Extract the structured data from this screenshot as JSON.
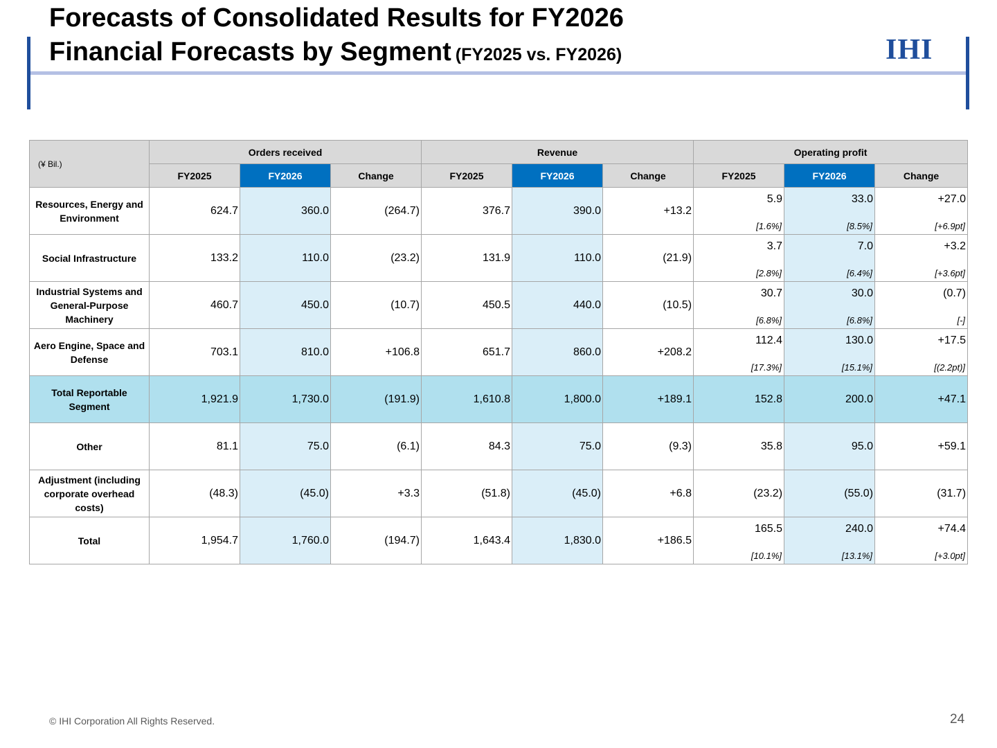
{
  "header": {
    "title_line1": "Forecasts of Consolidated Results for FY2026",
    "title_line2": "Financial Forecasts by Segment",
    "subtitle": "(FY2025 vs. FY2026)",
    "logo_text": "IHI"
  },
  "colors": {
    "accent": "#1f4e9c",
    "header_blue": "#0070c0",
    "highlight": "#daeef8",
    "total_row": "#b0e0ee"
  },
  "table": {
    "unit": "(¥ Bil.)",
    "groups": [
      "Orders received",
      "Revenue",
      "Operating profit"
    ],
    "subheaders": [
      "FY2025",
      "FY2026",
      "Change",
      "FY2025",
      "FY2026",
      "Change",
      "FY2025",
      "FY2026",
      "Change"
    ],
    "rows": [
      {
        "label": "Resources, Energy and Environment",
        "orders": [
          "624.7",
          "360.0",
          "(264.7)"
        ],
        "revenue": [
          "376.7",
          "390.0",
          "+13.2"
        ],
        "op": [
          "5.9",
          "33.0",
          "+27.0"
        ],
        "op_pct": [
          "[1.6%]",
          "[8.5%]",
          "[+6.9pt]"
        ]
      },
      {
        "label": "Social Infrastructure",
        "orders": [
          "133.2",
          "110.0",
          "(23.2)"
        ],
        "revenue": [
          "131.9",
          "110.0",
          "(21.9)"
        ],
        "op": [
          "3.7",
          "7.0",
          "+3.2"
        ],
        "op_pct": [
          "[2.8%]",
          "[6.4%]",
          "[+3.6pt]"
        ]
      },
      {
        "label": "Industrial Systems and General-Purpose Machinery",
        "orders": [
          "460.7",
          "450.0",
          "(10.7)"
        ],
        "revenue": [
          "450.5",
          "440.0",
          "(10.5)"
        ],
        "op": [
          "30.7",
          "30.0",
          "(0.7)"
        ],
        "op_pct": [
          "[6.8%]",
          "[6.8%]",
          "[-]"
        ]
      },
      {
        "label": "Aero Engine, Space and Defense",
        "orders": [
          "703.1",
          "810.0",
          "+106.8"
        ],
        "revenue": [
          "651.7",
          "860.0",
          "+208.2"
        ],
        "op": [
          "112.4",
          "130.0",
          "+17.5"
        ],
        "op_pct": [
          "[17.3%]",
          "[15.1%]",
          "[(2.2pt)]"
        ]
      },
      {
        "label": "Total Reportable Segment",
        "orders": [
          "1,921.9",
          "1,730.0",
          "(191.9)"
        ],
        "revenue": [
          "1,610.8",
          "1,800.0",
          "+189.1"
        ],
        "op": [
          "152.8",
          "200.0",
          "+47.1"
        ],
        "op_pct": []
      },
      {
        "label": "Other",
        "orders": [
          "81.1",
          "75.0",
          "(6.1)"
        ],
        "revenue": [
          "84.3",
          "75.0",
          "(9.3)"
        ],
        "op": [
          "35.8",
          "95.0",
          "+59.1"
        ],
        "op_pct": []
      },
      {
        "label": "Adjustment (including corporate overhead costs)",
        "orders": [
          "(48.3)",
          "(45.0)",
          "+3.3"
        ],
        "revenue": [
          "(51.8)",
          "(45.0)",
          "+6.8"
        ],
        "op": [
          "(23.2)",
          "(55.0)",
          "(31.7)"
        ],
        "op_pct": []
      },
      {
        "label": "Total",
        "orders": [
          "1,954.7",
          "1,760.0",
          "(194.7)"
        ],
        "revenue": [
          "1,643.4",
          "1,830.0",
          "+186.5"
        ],
        "op": [
          "165.5",
          "240.0",
          "+74.4"
        ],
        "op_pct": [
          "[10.1%]",
          "[13.1%]",
          "[+3.0pt]"
        ]
      }
    ]
  },
  "footer": {
    "copyright": "© IHI Corporation All Rights Reserved.",
    "page_number": "24"
  }
}
